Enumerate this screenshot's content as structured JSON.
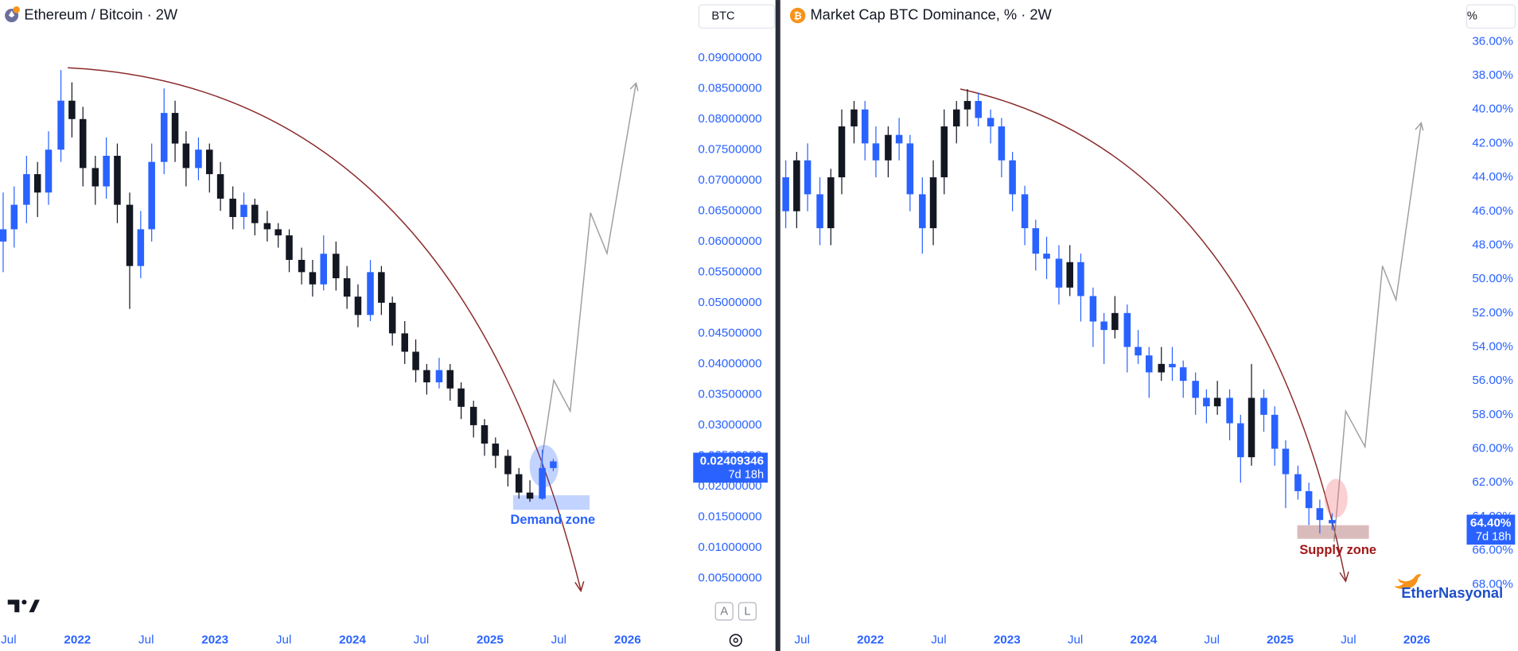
{
  "chart_data": [
    {
      "type": "candlestick",
      "title": "Ethereum / Bitcoin · 2W",
      "unit_label": "BTC",
      "xlim": [
        2021.437,
        2026.47
      ],
      "ylim": [
        0.0015,
        0.0947
      ],
      "xticks": [
        {
          "value": 2021.5,
          "label": "Jul"
        },
        2022,
        {
          "value": 2022.5,
          "label": "Jul"
        },
        2023,
        {
          "value": 2023.5,
          "label": "Jul"
        },
        2024,
        {
          "value": 2024.5,
          "label": "Jul"
        },
        2025,
        {
          "value": 2025.5,
          "label": "Jul"
        },
        2026
      ],
      "yticks": [
        {
          "value": 0.09,
          "label": "0.09000000"
        },
        {
          "value": 0.085,
          "label": "0.08500000"
        },
        {
          "value": 0.08,
          "label": "0.08000000"
        },
        {
          "value": 0.075,
          "label": "0.07500000"
        },
        {
          "value": 0.07,
          "label": "0.07000000"
        },
        {
          "value": 0.065,
          "label": "0.06500000"
        },
        {
          "value": 0.06,
          "label": "0.06000000"
        },
        {
          "value": 0.055,
          "label": "0.05500000"
        },
        {
          "value": 0.05,
          "label": "0.05000000"
        },
        {
          "value": 0.045,
          "label": "0.04500000"
        },
        {
          "value": 0.04,
          "label": "0.04000000"
        },
        {
          "value": 0.035,
          "label": "0.03500000"
        },
        {
          "value": 0.03,
          "label": "0.03000000"
        },
        {
          "value": 0.025,
          "label": "0.02500000"
        },
        {
          "value": 0.02,
          "label": "0.02000000"
        },
        {
          "value": 0.015,
          "label": "0.01500000"
        },
        {
          "value": 0.01,
          "label": "0.01000000"
        },
        {
          "value": 0.005,
          "label": "0.00500000"
        }
      ],
      "grid": false,
      "up_color": "#2962ff",
      "down_color": "#131722",
      "x": [
        2021.46,
        2021.54,
        2021.63,
        2021.71,
        2021.79,
        2021.88,
        2021.96,
        2022.04,
        2022.13,
        2022.21,
        2022.29,
        2022.38,
        2022.46,
        2022.54,
        2022.63,
        2022.71,
        2022.79,
        2022.88,
        2022.96,
        2023.04,
        2023.13,
        2023.21,
        2023.29,
        2023.38,
        2023.46,
        2023.54,
        2023.63,
        2023.71,
        2023.79,
        2023.88,
        2023.96,
        2024.04,
        2024.13,
        2024.21,
        2024.29,
        2024.38,
        2024.46,
        2024.54,
        2024.63,
        2024.71,
        2024.79,
        2024.88,
        2024.96,
        2025.04,
        2025.13,
        2025.21,
        2025.29,
        2025.38,
        2025.46
      ],
      "candles": [
        [
          0.06,
          0.068,
          0.055,
          0.062
        ],
        [
          0.062,
          0.069,
          0.059,
          0.066
        ],
        [
          0.066,
          0.074,
          0.063,
          0.071
        ],
        [
          0.071,
          0.073,
          0.064,
          0.068
        ],
        [
          0.068,
          0.078,
          0.066,
          0.075
        ],
        [
          0.075,
          0.088,
          0.073,
          0.083
        ],
        [
          0.083,
          0.086,
          0.077,
          0.08
        ],
        [
          0.08,
          0.082,
          0.069,
          0.072
        ],
        [
          0.072,
          0.074,
          0.066,
          0.069
        ],
        [
          0.069,
          0.077,
          0.067,
          0.074
        ],
        [
          0.074,
          0.076,
          0.063,
          0.066
        ],
        [
          0.066,
          0.068,
          0.049,
          0.056
        ],
        [
          0.056,
          0.065,
          0.054,
          0.062
        ],
        [
          0.062,
          0.076,
          0.06,
          0.073
        ],
        [
          0.073,
          0.085,
          0.071,
          0.081
        ],
        [
          0.081,
          0.083,
          0.073,
          0.076
        ],
        [
          0.076,
          0.078,
          0.069,
          0.072
        ],
        [
          0.072,
          0.077,
          0.07,
          0.075
        ],
        [
          0.075,
          0.076,
          0.068,
          0.071
        ],
        [
          0.071,
          0.073,
          0.065,
          0.067
        ],
        [
          0.067,
          0.069,
          0.062,
          0.064
        ],
        [
          0.064,
          0.068,
          0.062,
          0.066
        ],
        [
          0.066,
          0.067,
          0.061,
          0.063
        ],
        [
          0.063,
          0.065,
          0.06,
          0.062
        ],
        [
          0.062,
          0.063,
          0.059,
          0.061
        ],
        [
          0.061,
          0.062,
          0.055,
          0.057
        ],
        [
          0.057,
          0.059,
          0.053,
          0.055
        ],
        [
          0.055,
          0.057,
          0.051,
          0.053
        ],
        [
          0.053,
          0.061,
          0.052,
          0.058
        ],
        [
          0.058,
          0.06,
          0.052,
          0.054
        ],
        [
          0.054,
          0.056,
          0.049,
          0.051
        ],
        [
          0.051,
          0.053,
          0.046,
          0.048
        ],
        [
          0.048,
          0.057,
          0.047,
          0.055
        ],
        [
          0.055,
          0.056,
          0.048,
          0.05
        ],
        [
          0.05,
          0.051,
          0.043,
          0.045
        ],
        [
          0.045,
          0.047,
          0.04,
          0.042
        ],
        [
          0.042,
          0.044,
          0.037,
          0.039
        ],
        [
          0.039,
          0.04,
          0.035,
          0.037
        ],
        [
          0.037,
          0.041,
          0.036,
          0.039
        ],
        [
          0.039,
          0.04,
          0.034,
          0.036
        ],
        [
          0.036,
          0.037,
          0.031,
          0.033
        ],
        [
          0.033,
          0.034,
          0.028,
          0.03
        ],
        [
          0.03,
          0.031,
          0.025,
          0.027
        ],
        [
          0.027,
          0.028,
          0.023,
          0.025
        ],
        [
          0.025,
          0.026,
          0.02,
          0.022
        ],
        [
          0.022,
          0.023,
          0.018,
          0.019
        ],
        [
          0.019,
          0.021,
          0.0175,
          0.018
        ],
        [
          0.018,
          0.026,
          0.0178,
          0.023
        ],
        [
          0.023,
          0.0245,
          0.0225,
          0.02409346
        ]
      ],
      "current_price": {
        "value": 0.02409346,
        "label": "0.02409346"
      },
      "countdown": "7d 18h",
      "annotations": [
        "Demand zone"
      ]
    },
    {
      "type": "candlestick",
      "title": "Market Cap BTC Dominance, % · 2W",
      "unit_label": "%",
      "xlim": [
        2021.34,
        2026.33
      ],
      "ylim": [
        68.9,
        35.26
      ],
      "xticks": [
        {
          "value": 2021.5,
          "label": "Jul"
        },
        2022,
        {
          "value": 2022.5,
          "label": "Jul"
        },
        2023,
        {
          "value": 2023.5,
          "label": "Jul"
        },
        2024,
        {
          "value": 2024.5,
          "label": "Jul"
        },
        2025,
        {
          "value": 2025.5,
          "label": "Jul"
        },
        2026
      ],
      "yticks": [
        {
          "value": 36,
          "label": "36.00%"
        },
        {
          "value": 38,
          "label": "38.00%"
        },
        {
          "value": 40,
          "label": "40.00%"
        },
        {
          "value": 42,
          "label": "42.00%"
        },
        {
          "value": 44,
          "label": "44.00%"
        },
        {
          "value": 46,
          "label": "46.00%"
        },
        {
          "value": 48,
          "label": "48.00%"
        },
        {
          "value": 50,
          "label": "50.00%"
        },
        {
          "value": 52,
          "label": "52.00%"
        },
        {
          "value": 54,
          "label": "54.00%"
        },
        {
          "value": 56,
          "label": "56.00%"
        },
        {
          "value": 58,
          "label": "58.00%"
        },
        {
          "value": 60,
          "label": "60.00%"
        },
        {
          "value": 62,
          "label": "62.00%"
        },
        {
          "value": 64,
          "label": "64.00%"
        },
        {
          "value": 66,
          "label": "66.00%"
        },
        {
          "value": 68,
          "label": "68.00%"
        }
      ],
      "grid": false,
      "up_color": "#2962ff",
      "down_color": "#131722",
      "x": [
        2021.38,
        2021.46,
        2021.54,
        2021.63,
        2021.71,
        2021.79,
        2021.88,
        2021.96,
        2022.04,
        2022.13,
        2022.21,
        2022.29,
        2022.38,
        2022.46,
        2022.54,
        2022.63,
        2022.71,
        2022.79,
        2022.88,
        2022.96,
        2023.04,
        2023.13,
        2023.21,
        2023.29,
        2023.38,
        2023.46,
        2023.54,
        2023.63,
        2023.71,
        2023.79,
        2023.88,
        2023.96,
        2024.04,
        2024.13,
        2024.21,
        2024.29,
        2024.38,
        2024.46,
        2024.54,
        2024.63,
        2024.71,
        2024.79,
        2024.88,
        2024.96,
        2025.04,
        2025.13,
        2025.21,
        2025.29,
        2025.38
      ],
      "candles": [
        [
          44,
          47,
          43,
          46
        ],
        [
          46,
          47,
          42.5,
          43
        ],
        [
          43,
          46,
          42,
          45
        ],
        [
          45,
          48,
          44,
          47
        ],
        [
          47,
          48,
          43.5,
          44
        ],
        [
          44,
          45,
          40,
          41
        ],
        [
          41,
          42,
          39.5,
          40
        ],
        [
          40,
          43,
          39.5,
          42
        ],
        [
          42,
          44,
          41,
          43
        ],
        [
          43,
          44,
          41,
          41.5
        ],
        [
          41.5,
          43,
          40.5,
          42
        ],
        [
          42,
          46,
          41.5,
          45
        ],
        [
          45,
          48.5,
          44,
          47
        ],
        [
          47,
          48,
          43,
          44
        ],
        [
          44,
          45,
          40,
          41
        ],
        [
          41,
          42,
          39.5,
          40
        ],
        [
          40,
          41,
          38.8,
          39.5
        ],
        [
          39.5,
          41,
          39,
          40.5
        ],
        [
          40.5,
          42,
          40,
          41
        ],
        [
          41,
          44,
          40.5,
          43
        ],
        [
          43,
          46,
          42.5,
          45
        ],
        [
          45,
          48,
          44.5,
          47
        ],
        [
          47,
          49.5,
          46.5,
          48.5
        ],
        [
          48.5,
          50,
          47.5,
          48.8
        ],
        [
          48.8,
          51.5,
          48,
          50.5
        ],
        [
          50.5,
          51,
          48,
          49
        ],
        [
          49,
          52.5,
          48.5,
          51
        ],
        [
          51,
          54,
          50.5,
          52.5
        ],
        [
          52.5,
          55,
          52,
          53
        ],
        [
          53,
          53.5,
          51,
          52
        ],
        [
          52,
          55.5,
          51.5,
          54
        ],
        [
          54,
          55,
          53,
          54.5
        ],
        [
          54.5,
          57,
          54,
          55.5
        ],
        [
          55.5,
          56,
          54,
          55
        ],
        [
          55,
          56,
          54,
          55.2
        ],
        [
          55.2,
          57,
          54.8,
          56
        ],
        [
          56,
          58,
          55.5,
          57
        ],
        [
          57,
          58.5,
          56.5,
          57.5
        ],
        [
          57.5,
          58,
          56,
          57
        ],
        [
          57,
          59.5,
          56.5,
          58.5
        ],
        [
          58.5,
          62,
          58,
          60.5
        ],
        [
          60.5,
          61,
          55,
          57
        ],
        [
          57,
          59,
          56.5,
          58
        ],
        [
          58,
          61,
          57.5,
          60
        ],
        [
          60,
          63.5,
          59.5,
          61.5
        ],
        [
          61.5,
          63,
          61,
          62.5
        ],
        [
          62.5,
          64.5,
          62,
          63.5
        ],
        [
          63.5,
          65,
          63,
          64.2
        ],
        [
          64.2,
          64.8,
          63.8,
          64.4
        ]
      ],
      "current_price": {
        "value": 64.4,
        "label": "64.40%"
      },
      "countdown": "7d 18h",
      "annotations": [
        "Supply zone"
      ]
    }
  ],
  "toolbar": {
    "buttons": [
      "A",
      "L"
    ]
  },
  "watermark": "EtherNasyonal"
}
